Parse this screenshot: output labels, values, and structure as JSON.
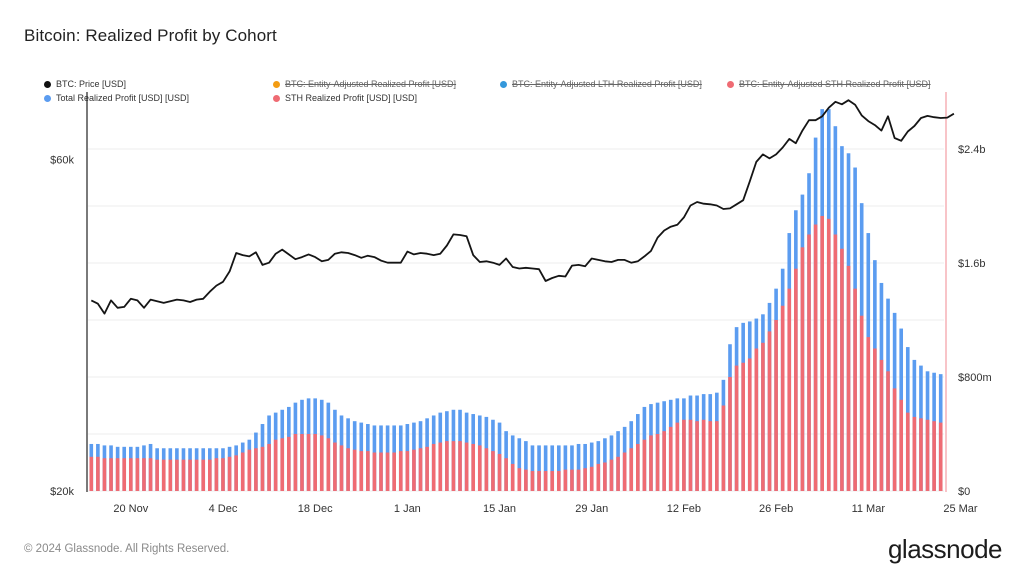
{
  "title": "Bitcoin: Realized Profit by Cohort",
  "legend": [
    {
      "label": "BTC: Price [USD]",
      "color": "#111111",
      "enabled": true
    },
    {
      "label": "BTC: Entity-Adjusted Realized Profit [USD]",
      "color": "#f39c12",
      "enabled": false
    },
    {
      "label": "BTC: Entity-Adjusted LTH Realized Profit [USD]",
      "color": "#3498db",
      "enabled": false
    },
    {
      "label": "BTC: Entity-Adjusted STH Realized Profit [USD]",
      "color": "#ef6b73",
      "enabled": false
    },
    {
      "label": "Total Realized Profit [USD] [USD]",
      "color": "#5b9cf0",
      "enabled": true
    },
    {
      "label": "STH Realized Profit [USD] [USD]",
      "color": "#ef6b73",
      "enabled": true
    }
  ],
  "footer": "© 2024 Glassnode. All Rights Reserved.",
  "brand": "glassnode",
  "chart_data": {
    "type": "bar",
    "x_ticks": [
      "20 Nov",
      "4 Dec",
      "18 Dec",
      "1 Jan",
      "15 Jan",
      "29 Jan",
      "12 Feb",
      "26 Feb",
      "11 Mar",
      "25 Mar"
    ],
    "y_left": {
      "ticks": [
        "$20k",
        "$60k"
      ],
      "scale": "log",
      "range": [
        20000,
        75000
      ]
    },
    "y_right": {
      "ticks": [
        "$0",
        "$800m",
        "$1.6b",
        "$2.4b"
      ],
      "range": [
        0,
        2800000000
      ]
    },
    "series": [
      {
        "name": "Total Realized Profit [USD] [USD]",
        "kind": "bar",
        "axis": "right",
        "color": "#5b9cf0",
        "values": [
          330,
          330,
          320,
          320,
          310,
          310,
          310,
          310,
          320,
          330,
          300,
          300,
          300,
          300,
          300,
          300,
          300,
          300,
          300,
          300,
          300,
          310,
          320,
          340,
          360,
          410,
          470,
          530,
          550,
          570,
          590,
          620,
          640,
          650,
          650,
          640,
          620,
          570,
          530,
          510,
          490,
          480,
          470,
          460,
          460,
          460,
          460,
          460,
          470,
          480,
          490,
          510,
          530,
          550,
          560,
          570,
          570,
          550,
          540,
          530,
          520,
          500,
          480,
          420,
          390,
          370,
          350,
          320,
          320,
          320,
          320,
          320,
          320,
          320,
          330,
          330,
          340,
          350,
          370,
          390,
          420,
          450,
          490,
          540,
          590,
          610,
          620,
          630,
          640,
          650,
          650,
          670,
          670,
          680,
          680,
          690,
          780,
          1030,
          1150,
          1180,
          1190,
          1210,
          1240,
          1320,
          1420,
          1560,
          1810,
          1970,
          2080,
          2230,
          2480,
          2680,
          2680,
          2560,
          2420,
          2370,
          2270,
          2020,
          1810,
          1620,
          1460,
          1350,
          1250,
          1140,
          1010,
          920,
          880,
          840,
          830,
          820
        ]
      },
      {
        "name": "STH Realized Profit [USD] [USD]",
        "kind": "bar",
        "axis": "right",
        "color": "#ef6b73",
        "values": [
          240,
          240,
          230,
          230,
          230,
          230,
          230,
          230,
          230,
          230,
          220,
          220,
          220,
          220,
          220,
          220,
          220,
          220,
          220,
          230,
          230,
          240,
          250,
          270,
          290,
          300,
          310,
          330,
          360,
          370,
          380,
          400,
          400,
          400,
          400,
          390,
          370,
          340,
          320,
          300,
          290,
          280,
          280,
          270,
          270,
          270,
          270,
          280,
          280,
          290,
          300,
          310,
          330,
          340,
          350,
          350,
          350,
          340,
          330,
          320,
          300,
          280,
          260,
          230,
          190,
          160,
          150,
          140,
          140,
          140,
          140,
          140,
          150,
          150,
          150,
          160,
          170,
          190,
          200,
          220,
          240,
          270,
          300,
          330,
          360,
          390,
          400,
          420,
          450,
          480,
          500,
          500,
          490,
          500,
          490,
          490,
          600,
          800,
          880,
          900,
          930,
          1000,
          1040,
          1120,
          1200,
          1300,
          1420,
          1560,
          1710,
          1800,
          1870,
          1930,
          1910,
          1800,
          1700,
          1580,
          1420,
          1230,
          1080,
          1000,
          920,
          840,
          720,
          640,
          550,
          520,
          510,
          500,
          490,
          480
        ]
      },
      {
        "name": "BTC: Price [USD]",
        "kind": "line",
        "axis": "left",
        "color": "#111111",
        "values": [
          37600,
          37200,
          36000,
          37600,
          36700,
          36800,
          37800,
          37600,
          36700,
          37700,
          37500,
          37300,
          37500,
          37700,
          37600,
          37400,
          37700,
          37800,
          38700,
          39500,
          40000,
          41400,
          44000,
          43700,
          43500,
          44100,
          42300,
          42600,
          43900,
          44500,
          43800,
          43100,
          43400,
          43800,
          43400,
          42800,
          43000,
          43900,
          44100,
          44000,
          43700,
          43300,
          43600,
          43400,
          42900,
          42600,
          42600,
          42600,
          44200,
          43800,
          44000,
          43900,
          43700,
          43900,
          45100,
          46800,
          46700,
          46500,
          43700,
          42700,
          42800,
          42600,
          42300,
          43200,
          42000,
          41800,
          41900,
          41800,
          41700,
          40100,
          40500,
          40800,
          40700,
          42200,
          42300,
          42100,
          43200,
          43000,
          42800,
          42700,
          43000,
          43000,
          42600,
          42800,
          43500,
          44300,
          46300,
          47400,
          48000,
          48300,
          49500,
          51500,
          52100,
          51800,
          51700,
          51500,
          50900,
          51000,
          51700,
          52400,
          55800,
          59500,
          61000,
          60200,
          61000,
          62400,
          64200,
          63300,
          66000,
          68300,
          68300,
          69200,
          71200,
          72600,
          72000,
          73000,
          71900,
          69400,
          68100,
          67200,
          66000,
          69200,
          64400,
          63800,
          65800,
          67000,
          68800,
          69300,
          69000,
          68800,
          68900,
          69800
        ]
      }
    ]
  }
}
